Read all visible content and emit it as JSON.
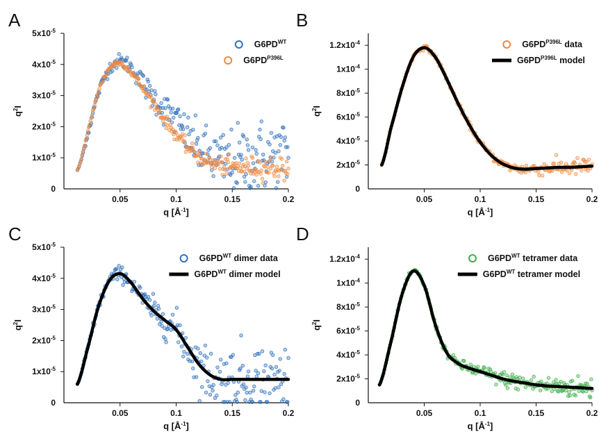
{
  "figure": {
    "panels": [
      {
        "letter": "A"
      },
      {
        "letter": "B"
      },
      {
        "letter": "C"
      },
      {
        "letter": "D"
      }
    ]
  },
  "chart_data": [
    {
      "panel": "A",
      "type": "scatter",
      "xlabel": "q [Å-1]",
      "ylabel": "q2I",
      "xlim": [
        0.0,
        0.2
      ],
      "ylim": [
        0,
        5e-05
      ],
      "xticks": [
        "0.05",
        "0.1",
        "0.15",
        "0.2"
      ],
      "yticks": [
        "0",
        "1x10-5",
        "2x10-5",
        "3x10-5",
        "4x10-5",
        "5x10-5"
      ],
      "legend_position": "top-right",
      "series": [
        {
          "name": "G6PD WT",
          "legend_base": "G6PD",
          "legend_sup": "WT",
          "legend_suffix": "",
          "color": "#2f6fbd",
          "marker": "circle",
          "x": [
            0.012,
            0.02,
            0.03,
            0.04,
            0.05,
            0.06,
            0.07,
            0.08,
            0.09,
            0.1,
            0.11,
            0.12,
            0.13,
            0.14,
            0.15,
            0.16,
            0.17,
            0.18,
            0.19,
            0.2
          ],
          "y": [
            6e-06,
            1.6e-05,
            3e-05,
            3.85e-05,
            4.1e-05,
            3.9e-05,
            3.4e-05,
            2.95e-05,
            2.55e-05,
            2.2e-05,
            1.7e-05,
            1.3e-05,
            1.05e-05,
            9e-06,
            8.5e-06,
            9e-06,
            1e-05,
            1.05e-05,
            1.05e-05,
            1.1e-05
          ],
          "scatter": [
            0.0,
            6e-07,
            8e-07,
            1e-06,
            1.2e-06,
            1.4e-06,
            1.8e-06,
            2.2e-06,
            2.6e-06,
            3e-06,
            3.5e-06,
            4e-06,
            4.5e-06,
            5e-06,
            5.5e-06,
            6e-06,
            6e-06,
            6e-06,
            6e-06,
            6e-06
          ]
        },
        {
          "name": "G6PD P396L",
          "legend_base": "G6PD",
          "legend_sup": "P396L",
          "legend_suffix": "",
          "color": "#f0893f",
          "marker": "circle",
          "x": [
            0.012,
            0.02,
            0.03,
            0.04,
            0.05,
            0.06,
            0.07,
            0.08,
            0.09,
            0.1,
            0.11,
            0.12,
            0.13,
            0.14,
            0.15,
            0.16,
            0.17,
            0.18,
            0.19,
            0.2
          ],
          "y": [
            6e-06,
            1.65e-05,
            3.05e-05,
            3.85e-05,
            4.05e-05,
            3.75e-05,
            3.25e-05,
            2.75e-05,
            2.2e-05,
            1.75e-05,
            1.35e-05,
            1.05e-05,
            8.5e-06,
            7.5e-06,
            7e-06,
            7e-06,
            7e-06,
            7e-06,
            6.8e-06,
            6.5e-06
          ],
          "scatter": [
            0.0,
            3e-07,
            4e-07,
            5e-07,
            5e-07,
            6e-07,
            7e-07,
            8e-07,
            9e-07,
            1e-06,
            1.1e-06,
            1.2e-06,
            1.3e-06,
            1.4e-06,
            1.5e-06,
            1.6e-06,
            1.7e-06,
            1.8e-06,
            1.9e-06,
            2e-06
          ]
        }
      ]
    },
    {
      "panel": "B",
      "type": "scatter",
      "xlabel": "q [Å-1]",
      "ylabel": "q2I",
      "xlim": [
        0.0,
        0.2
      ],
      "ylim": [
        0,
        0.00013
      ],
      "xticks": [
        "0.05",
        "0.1",
        "0.15",
        "0.2"
      ],
      "yticks": [
        "0",
        "2x10-5",
        "4x10-5",
        "6x10-5",
        "8x10-5",
        "1x10-4",
        "1.2x10-4"
      ],
      "legend_position": "top-right",
      "series": [
        {
          "name": "G6PD P396L data",
          "legend_base": "G6PD",
          "legend_sup": "P396L",
          "legend_suffix": " data",
          "color": "#f0893f",
          "marker": "circle",
          "x": [
            0.012,
            0.02,
            0.03,
            0.04,
            0.05,
            0.06,
            0.07,
            0.08,
            0.09,
            0.1,
            0.11,
            0.12,
            0.13,
            0.14,
            0.15,
            0.16,
            0.17,
            0.18,
            0.19,
            0.2
          ],
          "y": [
            2e-05,
            5e-05,
            8.4e-05,
            0.00011,
            0.000118,
            0.00011,
            9.2e-05,
            7.2e-05,
            5.4e-05,
            3.9e-05,
            2.8e-05,
            2.1e-05,
            1.75e-05,
            1.65e-05,
            1.7e-05,
            1.75e-05,
            1.8e-05,
            1.8e-05,
            1.85e-05,
            1.9e-05
          ],
          "scatter": [
            0.0,
            5e-07,
            7e-07,
            8e-07,
            9e-07,
            1e-06,
            1e-06,
            1e-06,
            1.1e-06,
            1.2e-06,
            1.4e-06,
            1.6e-06,
            2e-06,
            2.4e-06,
            2.8e-06,
            3e-06,
            3.2e-06,
            3.4e-06,
            3.6e-06,
            3.8e-06
          ]
        },
        {
          "name": "G6PD P396L model",
          "legend_base": "G6PD",
          "legend_sup": "P396L",
          "legend_suffix": " model",
          "color": "#000000",
          "marker": "line",
          "x": [
            0.012,
            0.02,
            0.03,
            0.04,
            0.05,
            0.06,
            0.07,
            0.08,
            0.09,
            0.1,
            0.11,
            0.12,
            0.13,
            0.14,
            0.15,
            0.16,
            0.17,
            0.18,
            0.19,
            0.2
          ],
          "y": [
            2e-05,
            5e-05,
            8.4e-05,
            0.00011,
            0.000118,
            0.00011,
            9.2e-05,
            7.2e-05,
            5.4e-05,
            3.9e-05,
            2.8e-05,
            2.1e-05,
            1.75e-05,
            1.65e-05,
            1.7e-05,
            1.75e-05,
            1.8e-05,
            1.8e-05,
            1.85e-05,
            1.9e-05
          ]
        }
      ]
    },
    {
      "panel": "C",
      "type": "scatter",
      "xlabel": "q [Å-1]",
      "ylabel": "q2I",
      "xlim": [
        0.0,
        0.2
      ],
      "ylim": [
        0,
        5e-05
      ],
      "xticks": [
        "0.05",
        "0.1",
        "0.15",
        "0.2"
      ],
      "yticks": [
        "0",
        "1x10-5",
        "2x10-5",
        "3x10-5",
        "4x10-5",
        "5x10-5"
      ],
      "legend_position": "top-right",
      "series": [
        {
          "name": "G6PD WT dimer data",
          "legend_base": "G6PD",
          "legend_sup": "WT",
          "legend_suffix": " dimer data",
          "color": "#2f6fbd",
          "marker": "circle",
          "x": [
            0.012,
            0.02,
            0.03,
            0.04,
            0.05,
            0.06,
            0.07,
            0.08,
            0.09,
            0.1,
            0.11,
            0.12,
            0.13,
            0.14,
            0.15,
            0.16,
            0.17,
            0.18,
            0.19,
            0.2
          ],
          "y": [
            6e-06,
            1.6e-05,
            3e-05,
            3.9e-05,
            4.15e-05,
            3.85e-05,
            3.35e-05,
            2.95e-05,
            2.65e-05,
            2.35e-05,
            1.8e-05,
            1.25e-05,
            9e-06,
            7.5e-06,
            7.5e-06,
            7.5e-06,
            7.5e-06,
            7.5e-06,
            7.5e-06,
            7.5e-06
          ],
          "scatter": [
            0.0,
            6e-07,
            8e-07,
            1e-06,
            1.2e-06,
            1.4e-06,
            1.8e-06,
            2.2e-06,
            2.6e-06,
            3e-06,
            3.5e-06,
            4e-06,
            4.5e-06,
            5e-06,
            5.5e-06,
            6e-06,
            6e-06,
            6e-06,
            6e-06,
            6e-06
          ]
        },
        {
          "name": "G6PD WT dimer model",
          "legend_base": "G6PD",
          "legend_sup": "WT",
          "legend_suffix": " dimer model",
          "color": "#000000",
          "marker": "line",
          "x": [
            0.012,
            0.02,
            0.03,
            0.04,
            0.05,
            0.06,
            0.07,
            0.08,
            0.09,
            0.1,
            0.11,
            0.12,
            0.13,
            0.14,
            0.15,
            0.16,
            0.17,
            0.18,
            0.19,
            0.2
          ],
          "y": [
            6e-06,
            1.6e-05,
            3e-05,
            3.9e-05,
            4.15e-05,
            3.85e-05,
            3.35e-05,
            2.95e-05,
            2.65e-05,
            2.35e-05,
            1.8e-05,
            1.25e-05,
            9e-06,
            7.5e-06,
            7.5e-06,
            7.5e-06,
            7.5e-06,
            7.5e-06,
            7.5e-06,
            7.5e-06
          ]
        }
      ]
    },
    {
      "panel": "D",
      "type": "scatter",
      "xlabel": "q [Å-1]",
      "ylabel": "q2I",
      "xlim": [
        0.0,
        0.2
      ],
      "ylim": [
        0,
        0.00013
      ],
      "xticks": [
        "0.05",
        "0.1",
        "0.15",
        "0.2"
      ],
      "yticks": [
        "0",
        "2x10-5",
        "4x10-5",
        "6x10-5",
        "8x10-5",
        "1x10-4",
        "1.2x10-4"
      ],
      "legend_position": "top-right",
      "series": [
        {
          "name": "G6PD WT tetramer data",
          "legend_base": "G6PD",
          "legend_sup": "WT",
          "legend_suffix": " tetramer data",
          "color": "#3fae49",
          "marker": "circle",
          "x": [
            0.01,
            0.02,
            0.03,
            0.04,
            0.05,
            0.06,
            0.07,
            0.08,
            0.09,
            0.1,
            0.11,
            0.12,
            0.13,
            0.14,
            0.15,
            0.16,
            0.17,
            0.18,
            0.19,
            0.2
          ],
          "y": [
            1.5e-05,
            5e-05,
            9e-05,
            0.00011,
            9.8e-05,
            6.5e-05,
            4.2e-05,
            3.3e-05,
            2.9e-05,
            2.6e-05,
            2.3e-05,
            2e-05,
            1.8e-05,
            1.65e-05,
            1.5e-05,
            1.4e-05,
            1.35e-05,
            1.3e-05,
            1.25e-05,
            1.2e-05
          ],
          "scatter": [
            0.0,
            5e-07,
            7e-07,
            8e-07,
            9e-07,
            1.2e-06,
            1.6e-06,
            2e-06,
            2.4e-06,
            2.8e-06,
            3e-06,
            3.2e-06,
            3.4e-06,
            3.6e-06,
            3.8e-06,
            4e-06,
            4.2e-06,
            4.4e-06,
            4.6e-06,
            4.8e-06
          ]
        },
        {
          "name": "G6PD WT tetramer model",
          "legend_base": "G6PD",
          "legend_sup": "WT",
          "legend_suffix": " tetramer model",
          "color": "#000000",
          "marker": "line",
          "x": [
            0.01,
            0.02,
            0.03,
            0.04,
            0.05,
            0.06,
            0.07,
            0.08,
            0.09,
            0.1,
            0.11,
            0.12,
            0.13,
            0.14,
            0.15,
            0.16,
            0.17,
            0.18,
            0.19,
            0.2
          ],
          "y": [
            1.5e-05,
            5e-05,
            9e-05,
            0.00011,
            9.8e-05,
            6.5e-05,
            4.2e-05,
            3.3e-05,
            2.9e-05,
            2.6e-05,
            2.3e-05,
            2e-05,
            1.8e-05,
            1.65e-05,
            1.5e-05,
            1.4e-05,
            1.35e-05,
            1.3e-05,
            1.25e-05,
            1.2e-05
          ]
        }
      ]
    }
  ]
}
